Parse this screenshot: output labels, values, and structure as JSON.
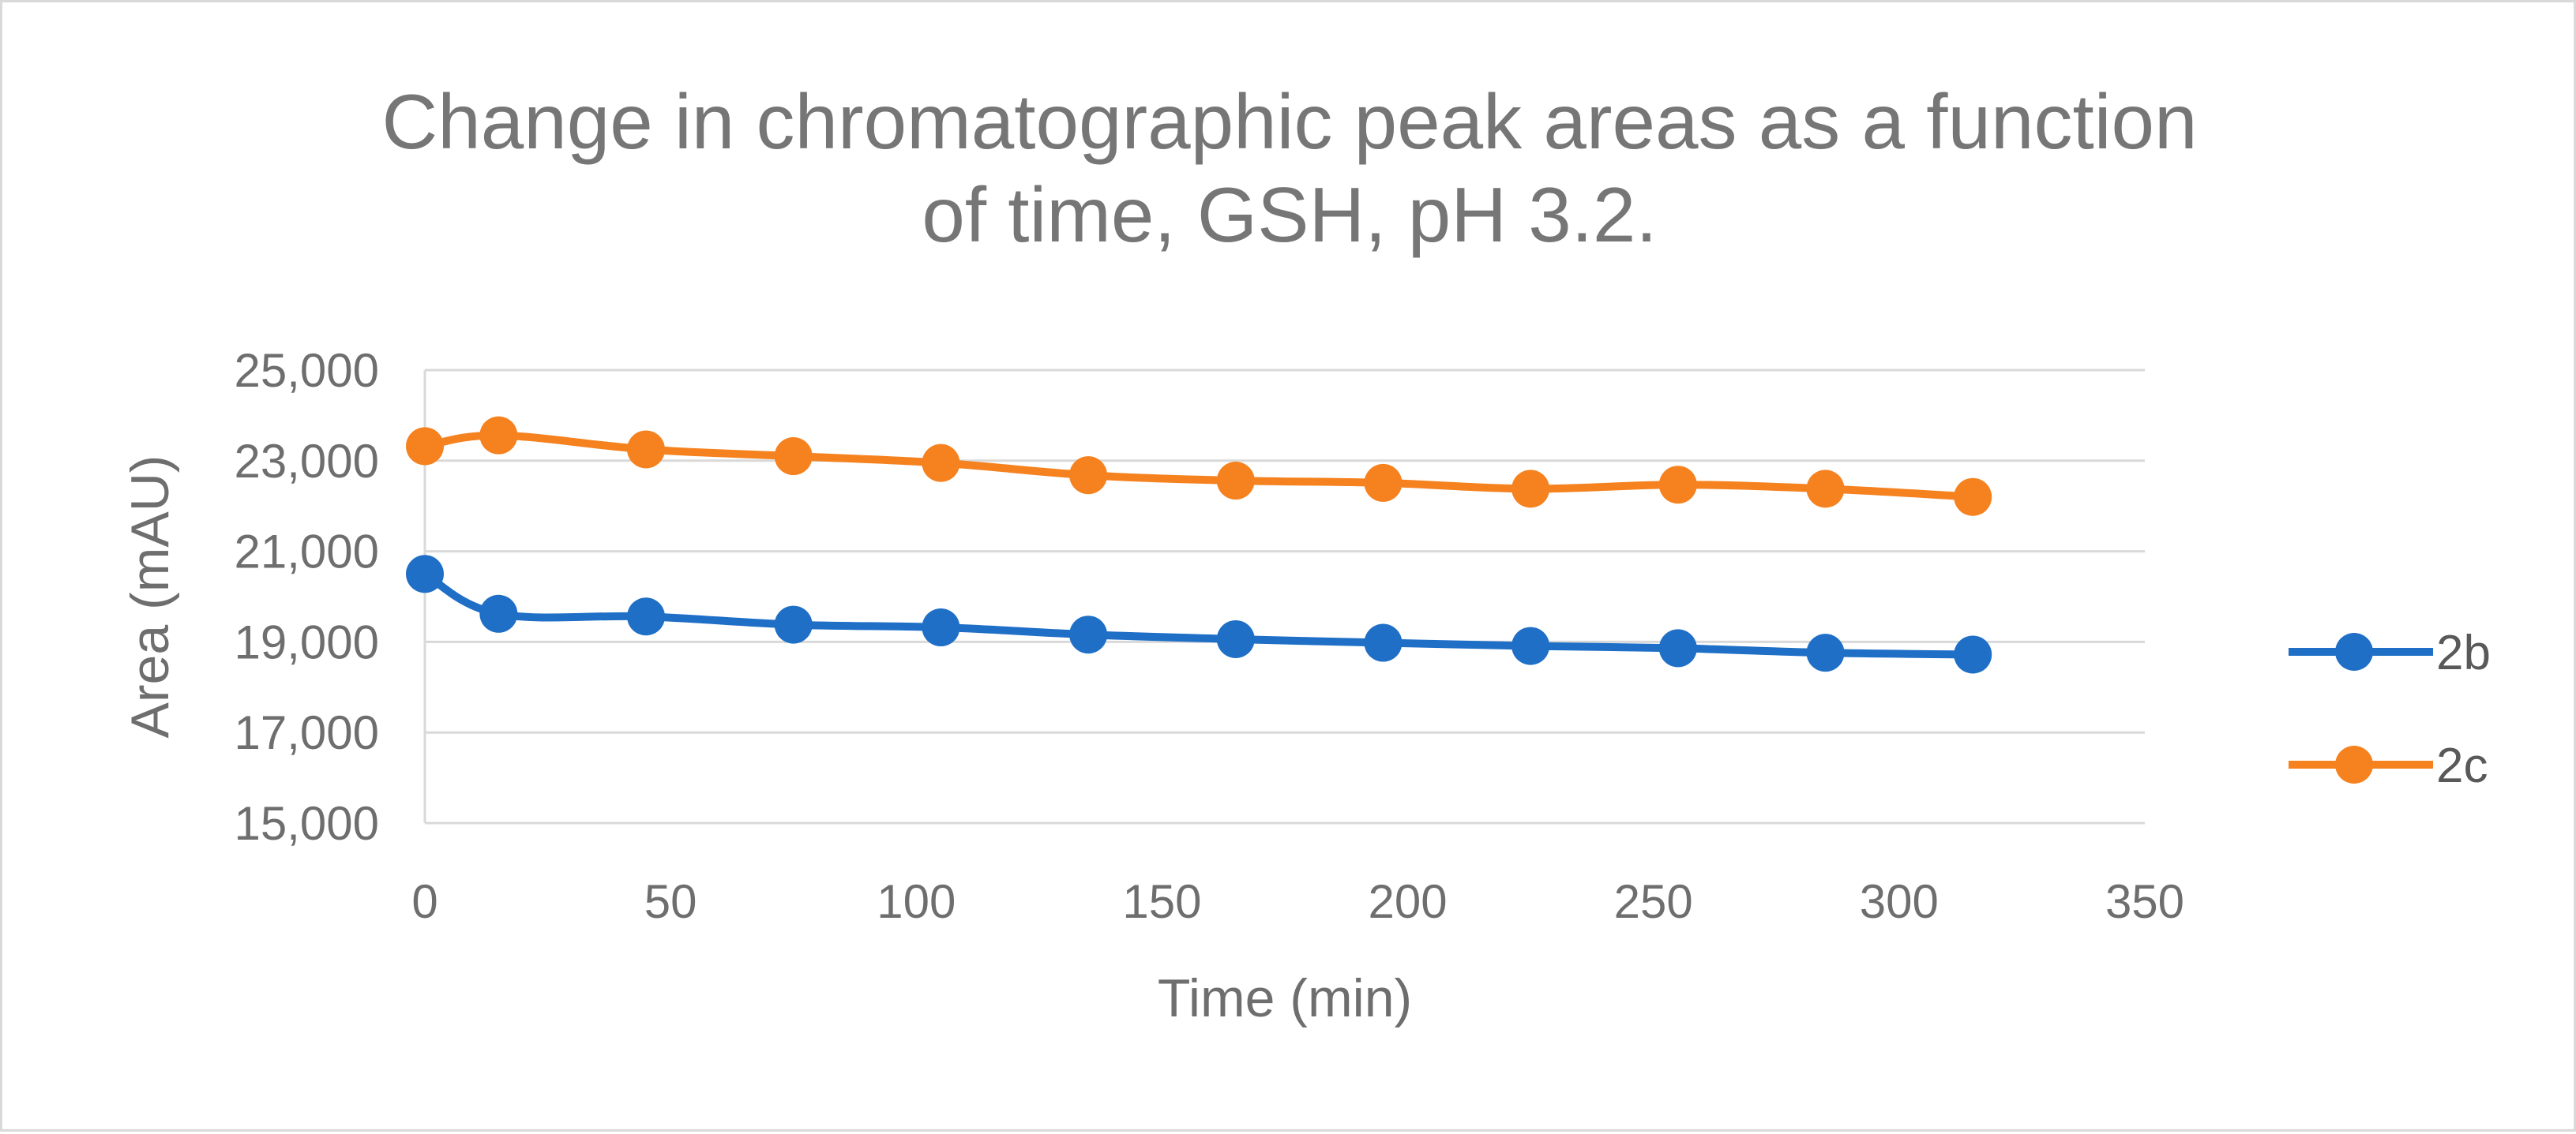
{
  "chart_data": {
    "type": "line",
    "title_lines": [
      "Change in chromatographic peak areas as a function",
      "of time, GSH, pH 3.2."
    ],
    "xlabel": "Time (min)",
    "ylabel": "Area (mAU)",
    "xlim": [
      0,
      350
    ],
    "ylim": [
      15000,
      25000
    ],
    "x_ticks": [
      0,
      50,
      100,
      150,
      200,
      250,
      300,
      350
    ],
    "x_tick_labels": [
      "0",
      "50",
      "100",
      "150",
      "200",
      "250",
      "300",
      "350"
    ],
    "y_ticks": [
      15000,
      17000,
      19000,
      21000,
      23000,
      25000
    ],
    "y_tick_labels": [
      "15,000",
      "17,000",
      "19,000",
      "21,000",
      "23,000",
      "25,000"
    ],
    "grid": "horizontal",
    "legend_position": "right",
    "series": [
      {
        "name": "2b",
        "color": "#1f6fc7",
        "x": [
          0,
          15,
          45,
          75,
          105,
          135,
          165,
          195,
          225,
          255,
          285,
          315
        ],
        "y": [
          20500,
          19620,
          19560,
          19380,
          19320,
          19160,
          19060,
          18980,
          18910,
          18860,
          18760,
          18720
        ]
      },
      {
        "name": "2c",
        "color": "#f5821f",
        "x": [
          0,
          15,
          45,
          75,
          105,
          135,
          165,
          195,
          225,
          255,
          285,
          315
        ],
        "y": [
          23320,
          23560,
          23250,
          23100,
          22950,
          22680,
          22560,
          22510,
          22380,
          22470,
          22380,
          22200
        ]
      }
    ]
  }
}
